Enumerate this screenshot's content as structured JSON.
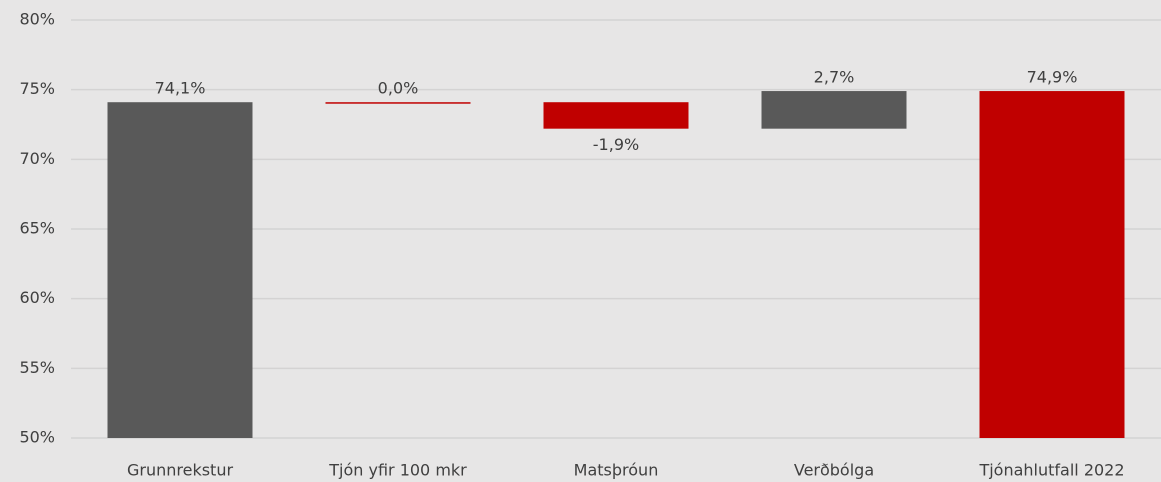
{
  "chart_data": {
    "type": "waterfall",
    "categories": [
      "Grunnrekstur",
      "Tjón yfir 100 mkr",
      "Matsþróun",
      "Verðbólga",
      "Tjónahlutfall 2022"
    ],
    "values": [
      74.1,
      0.0,
      -1.9,
      2.7,
      74.9
    ],
    "value_labels": [
      "74,1%",
      "0,0%",
      "-1,9%",
      "2,7%",
      "74,9%"
    ],
    "measure": [
      "absolute",
      "relative",
      "relative",
      "relative",
      "absolute"
    ],
    "colors": [
      "#595959",
      "#c00000",
      "#c00000",
      "#595959",
      "#c00000"
    ],
    "ylim": [
      50,
      80
    ],
    "yticks": [
      {
        "value": 50,
        "label": "50%"
      },
      {
        "value": 55,
        "label": "55%"
      },
      {
        "value": 60,
        "label": "60%"
      },
      {
        "value": 65,
        "label": "65%"
      },
      {
        "value": 70,
        "label": "70%"
      },
      {
        "value": 75,
        "label": "75%"
      },
      {
        "value": 80,
        "label": "80%"
      }
    ],
    "grid": true
  }
}
